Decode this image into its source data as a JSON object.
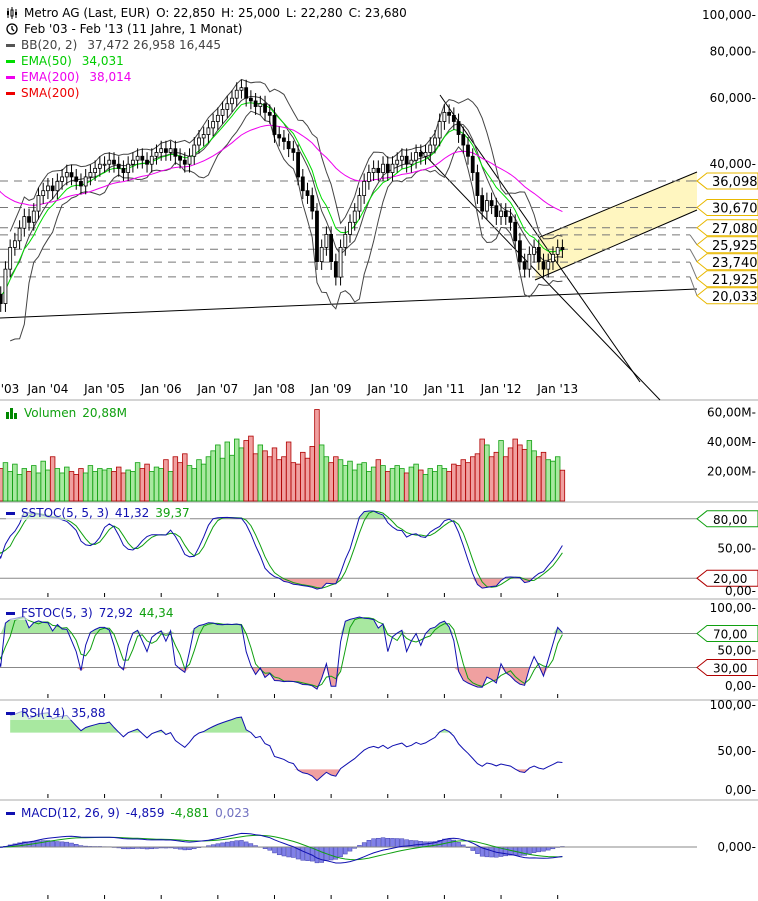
{
  "header": {
    "instrument": "Metro AG (Last, EUR)",
    "open": "O: 22,850",
    "high": "H: 25,000",
    "low": "L: 22,280",
    "close": "C: 23,680",
    "period": "Feb '03 - Feb '13 (11 Jahre, 1 Monat)"
  },
  "legend": [
    {
      "label": "BB(20, 2)",
      "values": "37,472  26,958  16,445",
      "color": "#555555"
    },
    {
      "label": "EMA(50)",
      "values": "34,031",
      "color": "#00dd00"
    },
    {
      "label": "EMA(200)",
      "values": "38,014",
      "color": "#ee00ee"
    },
    {
      "label": "SMA(200)",
      "values": "",
      "color": "#ee0000"
    }
  ],
  "main": {
    "y_ticks": [
      {
        "value": 100,
        "label": "100,000-"
      },
      {
        "value": 80,
        "label": "80,000-"
      },
      {
        "value": 60,
        "label": "60,000-"
      },
      {
        "value": 40,
        "label": "40,000-"
      }
    ],
    "levels": [
      {
        "value": 36.098,
        "label": "36,098"
      },
      {
        "value": 30.67,
        "label": "30,670"
      },
      {
        "value": 25.925,
        "label": "25,925"
      },
      {
        "value": 27.08,
        "label": "27,080"
      },
      {
        "value": 23.74,
        "label": "23,740"
      },
      {
        "value": 21.925,
        "label": "21,925"
      },
      {
        "value": 20.033,
        "label": "20,033"
      }
    ],
    "x_labels": [
      "'03",
      "Jan '04",
      "Jan '05",
      "Jan '06",
      "Jan '07",
      "Jan '08",
      "Jan '09",
      "Jan '10",
      "Jan '11",
      "Jan '12",
      "Jan '13"
    ]
  },
  "volume_panel": {
    "label": "Volumen",
    "value": "20,88M",
    "ticks": [
      {
        "value": 60,
        "label": "60,00M-"
      },
      {
        "value": 40,
        "label": "40,00M-"
      },
      {
        "value": 20,
        "label": "20,00M-"
      }
    ]
  },
  "sstoc_panel": {
    "label": "SSTOC(5, 5, 3)",
    "k": "41,32",
    "d": "39,37",
    "ticks": [
      {
        "value": 50,
        "label": "50,00-"
      },
      {
        "value": 0,
        "label": "0,00-"
      }
    ],
    "upper": {
      "value": 80,
      "label": "80,00"
    },
    "lower": {
      "value": 20,
      "label": "20,00"
    }
  },
  "fstoc_panel": {
    "label": "FSTOC(5, 3)",
    "k": "72,92",
    "d": "44,34",
    "ticks": [
      {
        "value": 100,
        "label": "100,00-"
      },
      {
        "value": 50,
        "label": "50,00-"
      },
      {
        "value": 0,
        "label": "0,00-"
      }
    ],
    "upper": {
      "value": 70,
      "label": "70,00"
    },
    "lower": {
      "value": 30,
      "label": "30,00"
    }
  },
  "rsi_panel": {
    "label": "RSI(14)",
    "value": "35,88",
    "ticks": [
      {
        "value": 100,
        "label": "100,00-"
      },
      {
        "value": 50,
        "label": "50,00-"
      },
      {
        "value": 0,
        "label": "0,00-"
      }
    ]
  },
  "macd_panel": {
    "label": "MACD(12, 26, 9)",
    "macd": "-4,859",
    "signal": "-4,881",
    "hist": "0,023",
    "ticks": [
      {
        "value": 0,
        "label": "0,000-"
      }
    ]
  },
  "colors": {
    "up_volume": "#a8e8a0",
    "down_volume": "#f0a0a0",
    "indicator": "#1010b0",
    "signal": "#10a010",
    "channel": "#fff6c0",
    "tag": "#e8b800"
  },
  "chart_data": {
    "type": "candlestick",
    "title": "Metro AG (Last, EUR)",
    "start": "Feb 2003",
    "interval": "month",
    "ylim": [
      15,
      100
    ],
    "yscale": "log",
    "closes": [
      18,
      17,
      21,
      24,
      25,
      27,
      29,
      28,
      30,
      33,
      34,
      35,
      34,
      36,
      37,
      38,
      37,
      36,
      35,
      37,
      38,
      39,
      40,
      40,
      41,
      40,
      39,
      38,
      40,
      41,
      42,
      41,
      40,
      42,
      43,
      44,
      43,
      44,
      42,
      41,
      40,
      42,
      45,
      47,
      48,
      50,
      52,
      54,
      56,
      58,
      60,
      63,
      64,
      60,
      59,
      57,
      58,
      55,
      54,
      48,
      47,
      46,
      44,
      43,
      37,
      34,
      33,
      30,
      22,
      24,
      26,
      22,
      20,
      24,
      26,
      28,
      30,
      33,
      36,
      38,
      39,
      38,
      40,
      38,
      40,
      41,
      42,
      40,
      41,
      43,
      42,
      43,
      45,
      47,
      52,
      55,
      54,
      52,
      48,
      45,
      42,
      38,
      33,
      30,
      32,
      31,
      29,
      30,
      29,
      28,
      25,
      22,
      21,
      23,
      24,
      22,
      21,
      22,
      23,
      24,
      23.68
    ],
    "volumes_m": [
      28,
      22,
      26,
      20,
      25,
      18,
      22,
      20,
      24,
      19,
      27,
      21,
      30,
      22,
      19,
      23,
      20,
      18,
      22,
      19,
      24,
      20,
      22,
      21,
      22,
      20,
      23,
      19,
      21,
      20,
      26,
      22,
      25,
      20,
      23,
      22,
      28,
      20,
      30,
      26,
      32,
      24,
      22,
      28,
      25,
      30,
      34,
      38,
      29,
      40,
      31,
      42,
      36,
      41,
      44,
      32,
      38,
      34,
      30,
      36,
      28,
      30,
      40,
      26,
      25,
      33,
      29,
      37,
      62,
      38,
      30,
      26,
      30,
      28,
      24,
      27,
      21,
      25,
      26,
      20,
      23,
      28,
      24,
      20,
      22,
      24,
      22,
      19,
      23,
      25,
      21,
      18,
      22,
      20,
      24,
      22,
      20,
      25,
      24,
      28,
      26,
      30,
      32,
      42,
      38,
      30,
      33,
      41,
      30,
      36,
      42,
      38,
      35,
      41,
      34,
      30,
      33,
      28,
      27,
      30,
      20.88
    ]
  }
}
